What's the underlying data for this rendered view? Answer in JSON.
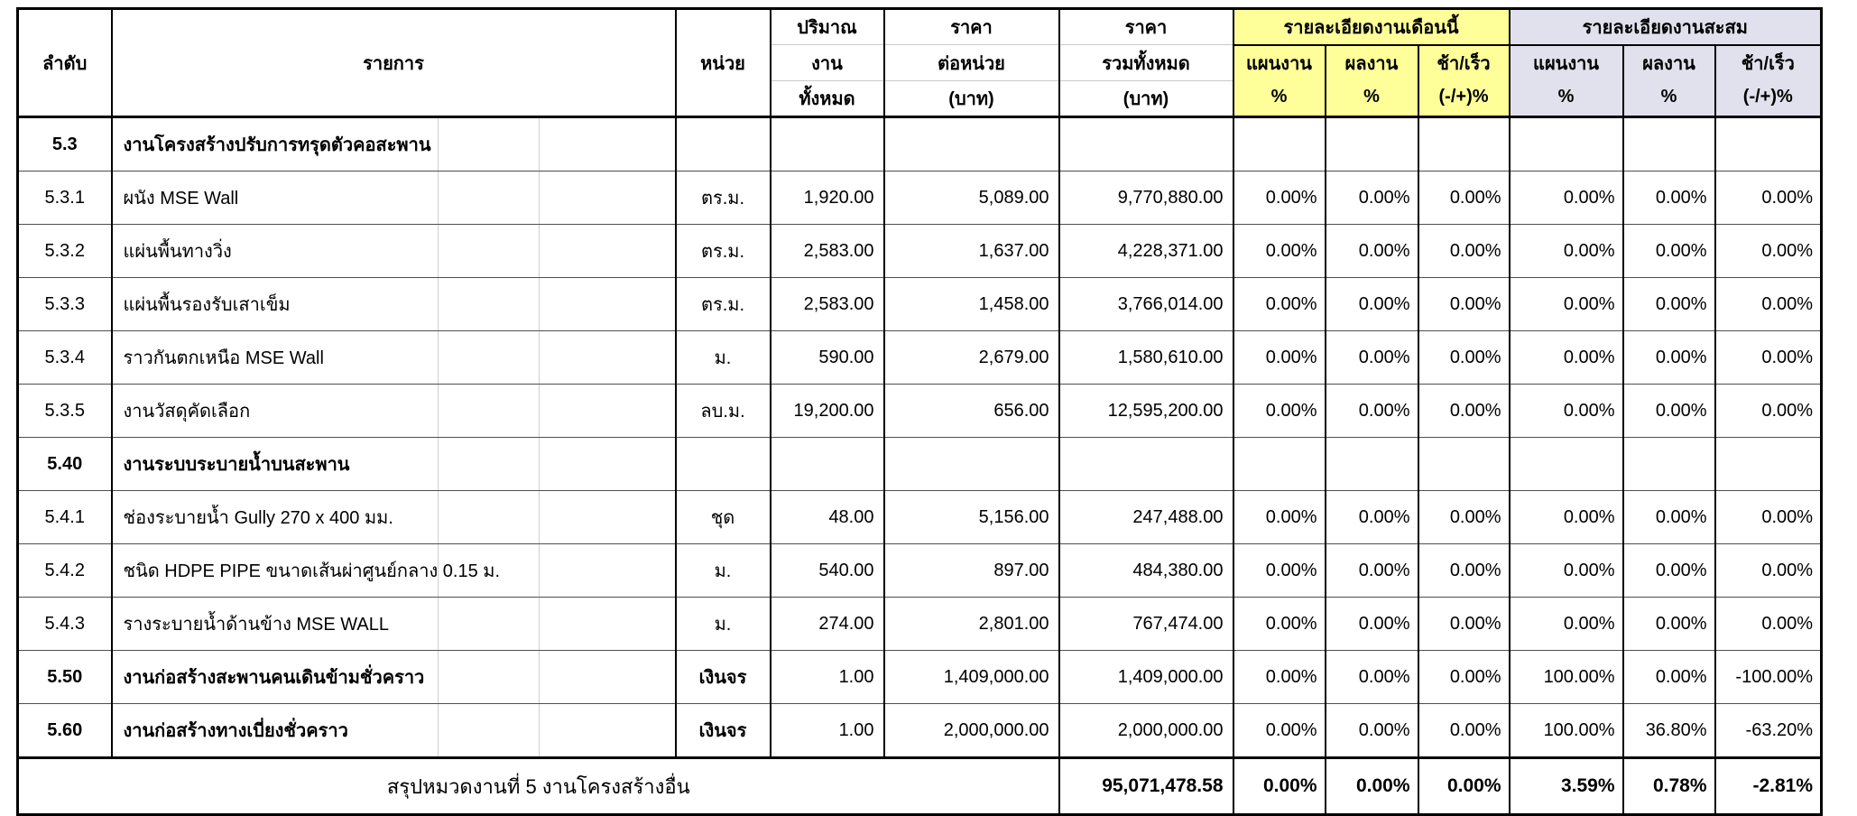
{
  "header": {
    "col_no": "ลำดับ",
    "col_item": "รายการ",
    "col_unit": "หน่วย",
    "col_qty": [
      "ปริมาณ",
      "งาน",
      "ทั้งหมด"
    ],
    "col_unit_price": [
      "ราคา",
      "ต่อหน่วย",
      "(บาท)"
    ],
    "col_total_price": [
      "ราคา",
      "รวมทั้งหมด",
      "(บาท)"
    ],
    "group_month": "รายละเอียดงานเดือนนี้",
    "group_cumulative": "รายละเอียดงานสะสม",
    "sub_plan": [
      "แผนงาน",
      "%"
    ],
    "sub_actual": [
      "ผลงาน",
      "%"
    ],
    "sub_diff": [
      "ช้า/เร็ว",
      "(-/+)%"
    ]
  },
  "rows": [
    {
      "no": "5.3",
      "item": "งานโครงสร้างปรับการทรุดตัวคอสะพาน",
      "section": true,
      "unit": "",
      "qty": "",
      "unit_price": "",
      "total": "",
      "m_plan": "",
      "m_actual": "",
      "m_diff": "",
      "c_plan": "",
      "c_actual": "",
      "c_diff": ""
    },
    {
      "no": "5.3.1",
      "item": "ผนัง MSE Wall",
      "unit": "ตร.ม.",
      "qty": "1,920.00",
      "unit_price": "5,089.00",
      "total": "9,770,880.00",
      "m_plan": "0.00%",
      "m_actual": "0.00%",
      "m_diff": "0.00%",
      "c_plan": "0.00%",
      "c_actual": "0.00%",
      "c_diff": "0.00%"
    },
    {
      "no": "5.3.2",
      "item": "แผ่นพื้นทางวิ่ง",
      "unit": "ตร.ม.",
      "qty": "2,583.00",
      "unit_price": "1,637.00",
      "total": "4,228,371.00",
      "m_plan": "0.00%",
      "m_actual": "0.00%",
      "m_diff": "0.00%",
      "c_plan": "0.00%",
      "c_actual": "0.00%",
      "c_diff": "0.00%"
    },
    {
      "no": "5.3.3",
      "item": "แผ่นพื้นรองรับเสาเข็ม",
      "unit": "ตร.ม.",
      "qty": "2,583.00",
      "unit_price": "1,458.00",
      "total": "3,766,014.00",
      "m_plan": "0.00%",
      "m_actual": "0.00%",
      "m_diff": "0.00%",
      "c_plan": "0.00%",
      "c_actual": "0.00%",
      "c_diff": "0.00%"
    },
    {
      "no": "5.3.4",
      "item": "ราวกันตกเหนือ MSE Wall",
      "unit": "ม.",
      "qty": "590.00",
      "unit_price": "2,679.00",
      "total": "1,580,610.00",
      "m_plan": "0.00%",
      "m_actual": "0.00%",
      "m_diff": "0.00%",
      "c_plan": "0.00%",
      "c_actual": "0.00%",
      "c_diff": "0.00%"
    },
    {
      "no": "5.3.5",
      "item": "งานวัสดุคัดเลือก",
      "unit": "ลบ.ม.",
      "qty": "19,200.00",
      "unit_price": "656.00",
      "total": "12,595,200.00",
      "m_plan": "0.00%",
      "m_actual": "0.00%",
      "m_diff": "0.00%",
      "c_plan": "0.00%",
      "c_actual": "0.00%",
      "c_diff": "0.00%"
    },
    {
      "no": "5.40",
      "item": "งานระบบระบายน้ำบนสะพาน",
      "section": true,
      "unit": "",
      "qty": "",
      "unit_price": "",
      "total": "",
      "m_plan": "",
      "m_actual": "",
      "m_diff": "",
      "c_plan": "",
      "c_actual": "",
      "c_diff": ""
    },
    {
      "no": "5.4.1",
      "item": "ช่องระบายน้ำ Gully 270 x 400 มม.",
      "unit": "ชุด",
      "qty": "48.00",
      "unit_price": "5,156.00",
      "total": "247,488.00",
      "m_plan": "0.00%",
      "m_actual": "0.00%",
      "m_diff": "0.00%",
      "c_plan": "0.00%",
      "c_actual": "0.00%",
      "c_diff": "0.00%"
    },
    {
      "no": "5.4.2",
      "item": "ชนิด HDPE PIPE ขนาดเส้นผ่าศูนย์กลาง 0.15 ม.",
      "unit": "ม.",
      "qty": "540.00",
      "unit_price": "897.00",
      "total": "484,380.00",
      "m_plan": "0.00%",
      "m_actual": "0.00%",
      "m_diff": "0.00%",
      "c_plan": "0.00%",
      "c_actual": "0.00%",
      "c_diff": "0.00%"
    },
    {
      "no": "5.4.3",
      "item": "รางระบายน้ำด้านข้าง MSE WALL",
      "unit": "ม.",
      "qty": "274.00",
      "unit_price": "2,801.00",
      "total": "767,474.00",
      "m_plan": "0.00%",
      "m_actual": "0.00%",
      "m_diff": "0.00%",
      "c_plan": "0.00%",
      "c_actual": "0.00%",
      "c_diff": "0.00%"
    },
    {
      "no": "5.50",
      "item": "งานก่อสร้างสะพานคนเดินข้ามชั่วคราว",
      "section": true,
      "unit": "เงินจร",
      "qty": "1.00",
      "unit_price": "1,409,000.00",
      "total": "1,409,000.00",
      "m_plan": "0.00%",
      "m_actual": "0.00%",
      "m_diff": "0.00%",
      "c_plan": "100.00%",
      "c_actual": "0.00%",
      "c_diff": "-100.00%"
    },
    {
      "no": "5.60",
      "item": "งานก่อสร้างทางเบี่ยงชั่วคราว",
      "section": true,
      "unit": "เงินจร",
      "qty": "1.00",
      "unit_price": "2,000,000.00",
      "total": "2,000,000.00",
      "m_plan": "0.00%",
      "m_actual": "0.00%",
      "m_diff": "0.00%",
      "c_plan": "100.00%",
      "c_actual": "36.80%",
      "c_diff": "-63.20%"
    }
  ],
  "summary": {
    "label": "สรุปหมวดงานที่ 5 งานโครงสร้างอื่น",
    "total": "95,071,478.58",
    "m_plan": "0.00%",
    "m_actual": "0.00%",
    "m_diff": "0.00%",
    "c_plan": "3.59%",
    "c_actual": "0.78%",
    "c_diff": "-2.81%"
  },
  "colors": {
    "month_header_bg": "#FFFF99",
    "cumulative_header_bg": "#E1E1ED"
  }
}
